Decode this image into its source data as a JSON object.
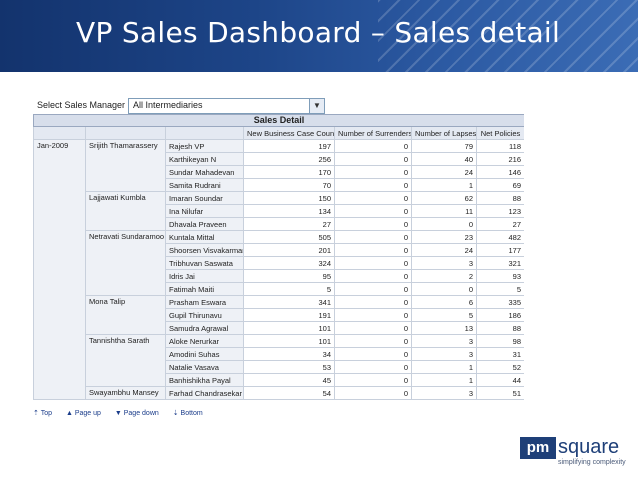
{
  "header": {
    "title": "VP Sales Dashboard – Sales detail"
  },
  "filter": {
    "label": "Select Sales Manager",
    "selected": "All Intermediaries"
  },
  "table": {
    "caption": "Sales Detail",
    "columns": [
      "New Business Case Count",
      "Number of Surrenders",
      "Number of Lapses",
      "Net Policies"
    ],
    "period": "Jan-2009",
    "groups": [
      {
        "manager": "Srijith Thamarassery",
        "rows": [
          [
            "Rajesh VP",
            "197",
            "0",
            "79",
            "118"
          ],
          [
            "Karthikeyan N",
            "256",
            "0",
            "40",
            "216"
          ],
          [
            "Sundar Mahadevan",
            "170",
            "0",
            "24",
            "146"
          ],
          [
            "Samita Rudrani",
            "70",
            "0",
            "1",
            "69"
          ]
        ]
      },
      {
        "manager": "Lajjawati Kumbla",
        "rows": [
          [
            "Imaran Soundar",
            "150",
            "0",
            "62",
            "88"
          ],
          [
            "Ina Nilufar",
            "134",
            "0",
            "11",
            "123"
          ],
          [
            "Dhavala Praveen",
            "27",
            "0",
            "0",
            "27"
          ]
        ]
      },
      {
        "manager": "Netravati Sundaramoo",
        "rows": [
          [
            "Kuntala Mittal",
            "505",
            "0",
            "23",
            "482"
          ],
          [
            "Shoorsen Visvakarman",
            "201",
            "0",
            "24",
            "177"
          ],
          [
            "Tribhuvan Saswata",
            "324",
            "0",
            "3",
            "321"
          ],
          [
            "Idris Jai",
            "95",
            "0",
            "2",
            "93"
          ],
          [
            "Fatimah Maiti",
            "5",
            "0",
            "0",
            "5"
          ]
        ]
      },
      {
        "manager": "Mona Talip",
        "rows": [
          [
            "Prasham Eswara",
            "341",
            "0",
            "6",
            "335"
          ],
          [
            "Gupil Thirunavu",
            "191",
            "0",
            "5",
            "186"
          ],
          [
            "Samudra Agrawal",
            "101",
            "0",
            "13",
            "88"
          ]
        ]
      },
      {
        "manager": "Tannishtha Sarath",
        "rows": [
          [
            "Aloke Nerurkar",
            "101",
            "0",
            "3",
            "98"
          ],
          [
            "Amodini Suhas",
            "34",
            "0",
            "3",
            "31"
          ],
          [
            "Natalie Vasava",
            "53",
            "0",
            "1",
            "52"
          ],
          [
            "Banhishikha Payal",
            "45",
            "0",
            "1",
            "44"
          ]
        ]
      },
      {
        "manager": "Swayambhu Mansey",
        "rows": [
          [
            "Farhad Chandrasekar",
            "54",
            "0",
            "3",
            "51"
          ]
        ]
      }
    ]
  },
  "pager": {
    "top": "Top",
    "page_up": "Page up",
    "page_down": "Page down",
    "bottom": "Bottom"
  },
  "logo": {
    "mark": "pm",
    "text": "square",
    "tagline": "simplifying complexity"
  }
}
